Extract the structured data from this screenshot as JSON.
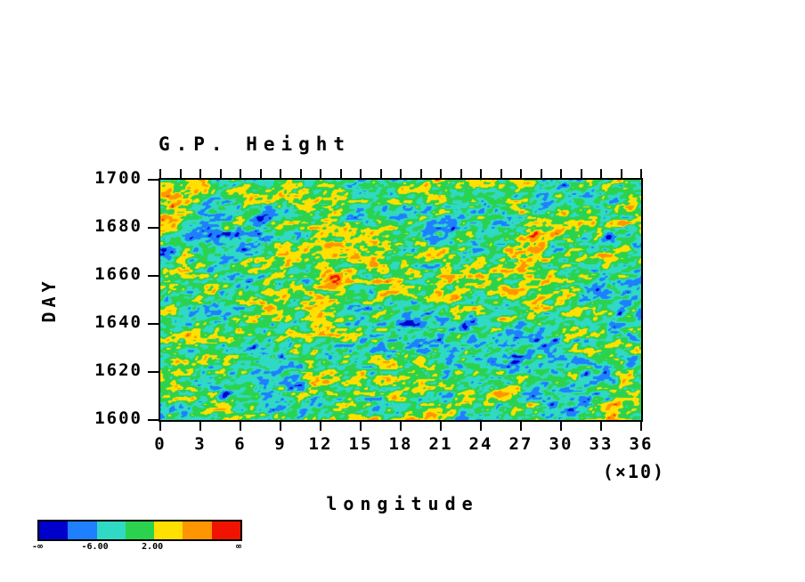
{
  "title": "G.P. Height",
  "axes": {
    "ylabel": "DAY",
    "xlabel": "longitude",
    "x_multiplier_label": "(×10)",
    "y_ticks": [
      "1700",
      "1680",
      "1660",
      "1640",
      "1620",
      "1600"
    ],
    "x_ticks": [
      "0",
      "3",
      "6",
      "9",
      "12",
      "15",
      "18",
      "21",
      "24",
      "27",
      "30",
      "33",
      "36"
    ]
  },
  "colorbar": {
    "ticks": [
      {
        "label": "-∞",
        "boundary_index": 0
      },
      {
        "label": "-6.00",
        "boundary_index": 2
      },
      {
        "label": "2.00",
        "boundary_index": 4
      },
      {
        "label": "∞",
        "boundary_index": 7
      }
    ]
  },
  "chart_data": {
    "type": "heatmap",
    "title": "G.P. Height",
    "xlabel": "longitude",
    "x_axis_scale_note": "(×10)",
    "ylabel": "DAY",
    "xlim": [
      0,
      360
    ],
    "ylim": [
      1600,
      1700
    ],
    "x_tick_labels": [
      0,
      3,
      6,
      9,
      12,
      15,
      18,
      21,
      24,
      27,
      30,
      33,
      36
    ],
    "y_tick_labels": [
      1700,
      1680,
      1660,
      1640,
      1620,
      1600
    ],
    "levels": [
      -10,
      -6,
      -2,
      2,
      6,
      10
    ],
    "palette": [
      "#0000cc",
      "#1e7fff",
      "#2fd9c4",
      "#2bd24d",
      "#ffe000",
      "#ff9500",
      "#f01400"
    ],
    "colorbar_labels": [
      "-∞",
      "-6.00",
      "2.00",
      "∞"
    ],
    "legend_position": "bottom-left",
    "grid": false,
    "field": {
      "description": "Dense speckled geopotential-height anomaly field dominated by green and turquoise mid-range values with scattered yellow/orange/red warm streaks and blue/dark-blue cold streaks; individual cell values are not resolvable, so the field is regenerated as seeded anisotropic value noise matching the visual texture and color distribution.",
      "seed": 7,
      "bias": -0.5,
      "scale": 1.25,
      "shear": 0.4,
      "noise_octaves": [
        {
          "cx": 110,
          "cy": 60,
          "amp": 2.6
        },
        {
          "cx": 34,
          "cy": 16,
          "amp": 3.4
        },
        {
          "cx": 12,
          "cy": 6,
          "amp": 4.4
        },
        {
          "cx": 5,
          "cy": 3,
          "amp": 3.0
        }
      ]
    }
  }
}
